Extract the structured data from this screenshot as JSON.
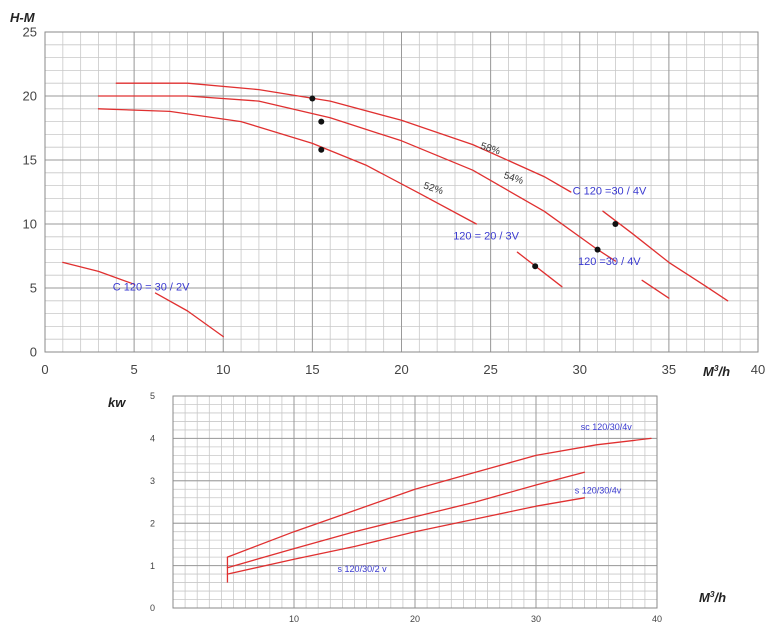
{
  "chart_data": [
    {
      "type": "line",
      "ylabel": "H-M",
      "xlabel_base": "M",
      "xlabel_sup": "3",
      "xlabel_tail": "/h",
      "xlim": [
        0,
        40
      ],
      "ylim": [
        0,
        25
      ],
      "x_ticks": [
        0,
        5,
        10,
        15,
        20,
        25,
        30,
        35,
        40
      ],
      "y_ticks": [
        0,
        5,
        10,
        15,
        20,
        25
      ],
      "x_minor_step": 1,
      "y_minor_step": 1,
      "grid": true,
      "curve_color": "#e03030",
      "grid_color": "#c8c8c8",
      "label_color": "#3a3ad0",
      "series": [
        {
          "name": "C 120 =30 / 4V",
          "label_at": [
            29.6,
            12.3
          ],
          "segments": [
            [
              [
                4,
                21.0
              ],
              [
                8,
                21.0
              ],
              [
                12,
                20.5
              ],
              [
                16,
                19.6
              ],
              [
                20,
                18.1
              ],
              [
                24,
                16.2
              ],
              [
                28,
                13.7
              ],
              [
                29.5,
                12.5
              ]
            ],
            [
              [
                31.3,
                11.0
              ],
              [
                33,
                9.2
              ],
              [
                35,
                7.0
              ],
              [
                37,
                5.2
              ],
              [
                38.3,
                4.0
              ]
            ]
          ]
        },
        {
          "name": "120 =30 / 4V",
          "label_at": [
            29.9,
            6.8
          ],
          "segments": [
            [
              [
                3,
                20.0
              ],
              [
                8,
                20.0
              ],
              [
                12,
                19.6
              ],
              [
                16,
                18.3
              ],
              [
                20,
                16.5
              ],
              [
                24,
                14.2
              ],
              [
                28,
                11.0
              ],
              [
                31,
                8.0
              ],
              [
                32,
                7.1
              ]
            ],
            [
              [
                33.5,
                5.6
              ],
              [
                35,
                4.2
              ]
            ]
          ]
        },
        {
          "name": "120 = 20 / 3V",
          "label_at": [
            22.9,
            8.8
          ],
          "segments": [
            [
              [
                3,
                19.0
              ],
              [
                7,
                18.8
              ],
              [
                11,
                18.0
              ],
              [
                15,
                16.3
              ],
              [
                18,
                14.6
              ],
              [
                21,
                12.4
              ],
              [
                24.2,
                10.0
              ]
            ],
            [
              [
                26.5,
                7.8
              ],
              [
                29,
                5.1
              ]
            ]
          ]
        },
        {
          "name": "C 120 = 30 / 2V",
          "label_at": [
            3.8,
            4.8
          ],
          "segments": [
            [
              [
                1,
                7.0
              ],
              [
                3,
                6.3
              ],
              [
                5,
                5.3
              ]
            ],
            [
              [
                6.2,
                4.6
              ],
              [
                8,
                3.2
              ],
              [
                10,
                1.2
              ]
            ]
          ]
        }
      ],
      "operating_points": [
        [
          15,
          19.8
        ],
        [
          15.5,
          18.0
        ],
        [
          15.5,
          15.8
        ],
        [
          32,
          10.0
        ],
        [
          31,
          8.0
        ],
        [
          27.5,
          6.7
        ]
      ],
      "efficiency_labels": [
        {
          "text": "58%",
          "x": 24.4,
          "y": 15.9
        },
        {
          "text": "54%",
          "x": 25.7,
          "y": 13.6
        },
        {
          "text": "52%",
          "x": 21.2,
          "y": 12.8
        }
      ]
    },
    {
      "type": "line",
      "ylabel": "kw",
      "xlabel_base": "M",
      "xlabel_sup": "3",
      "xlabel_tail": "/h",
      "xlim": [
        0,
        40
      ],
      "ylim": [
        0,
        5
      ],
      "x_ticks": [
        10,
        20,
        30,
        40
      ],
      "y_ticks": [
        0,
        1,
        2,
        3,
        4,
        5
      ],
      "x_minor_step": 1,
      "y_minor_step": 0.2,
      "grid": true,
      "curve_color": "#e03030",
      "grid_color": "#c8c8c8",
      "label_color": "#3a3ad0",
      "series": [
        {
          "name": "sc 120/30/4v",
          "label_at": [
            33.7,
            4.2
          ],
          "points": [
            [
              4.5,
              1.2
            ],
            [
              10,
              1.8
            ],
            [
              15,
              2.3
            ],
            [
              20,
              2.8
            ],
            [
              25,
              3.2
            ],
            [
              30,
              3.6
            ],
            [
              35,
              3.85
            ],
            [
              39.5,
              4.0
            ]
          ]
        },
        {
          "name": "s 120/30/4v",
          "label_at": [
            33.2,
            2.7
          ],
          "points": [
            [
              4.5,
              0.95
            ],
            [
              10,
              1.4
            ],
            [
              15,
              1.8
            ],
            [
              20,
              2.15
            ],
            [
              25,
              2.5
            ],
            [
              30,
              2.9
            ],
            [
              34,
              3.2
            ]
          ]
        },
        {
          "name": "s 120/30/2 v",
          "label_at": [
            13.6,
            0.85
          ],
          "points": [
            [
              4.5,
              0.8
            ],
            [
              10,
              1.15
            ],
            [
              15,
              1.45
            ],
            [
              20,
              1.8
            ],
            [
              25,
              2.1
            ],
            [
              30,
              2.4
            ],
            [
              34,
              2.6
            ]
          ]
        }
      ],
      "start_marker_x": 4.5,
      "start_marker_y": [
        0.6,
        1.2
      ]
    }
  ]
}
